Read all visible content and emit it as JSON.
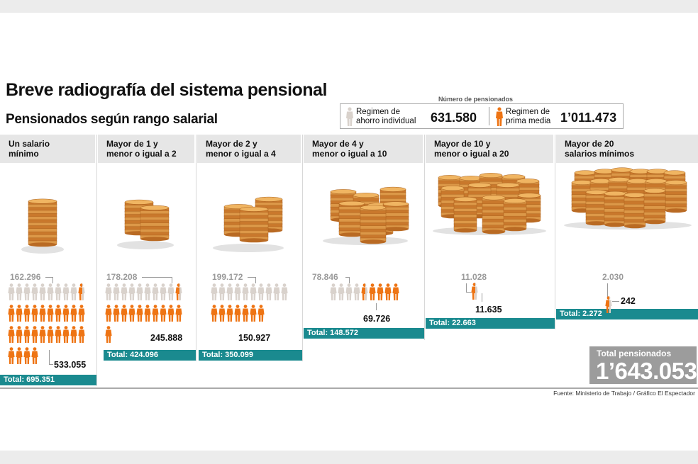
{
  "title": "Breve radiografía del sistema pensional",
  "subtitle": "Pensionados según rango salarial",
  "legend": {
    "title": "Número de pensionados",
    "ahorro": {
      "label_line1": "Regimen de",
      "label_line2": "ahorro individual",
      "value": "631.580",
      "color": "#d9d2cc"
    },
    "prima": {
      "label_line1": "Regimen de",
      "label_line2": "prima media",
      "value": "1’011.473",
      "color": "#ee7414"
    }
  },
  "grand_total": {
    "label": "Total pensionados",
    "value": "1’643.053"
  },
  "source": "Fuente: Ministerio de Trabajo / Gráfico El Espectador",
  "colors": {
    "ahorro": "#d9d2cc",
    "prima": "#ee7414",
    "total_bar": "#1a8a8f",
    "coin": "#d88f3c"
  },
  "chart_data": {
    "type": "pictogram",
    "categories": [
      "Un salario mínimo",
      "Mayor de 1 y menor o igual a 2",
      "Mayor de 2 y menor o igual a 4",
      "Mayor de 4 y menor o igual a 10",
      "Mayor de 10 y menor o igual a 20",
      "Mayor de 20 salarios mínimos"
    ],
    "series": [
      {
        "name": "Regimen de ahorro individual",
        "values": [
          162296,
          178208,
          199172,
          78846,
          11028,
          2030
        ]
      },
      {
        "name": "Regimen de prima media",
        "values": [
          533055,
          245888,
          150927,
          69726,
          11635,
          242
        ]
      }
    ],
    "totals": [
      695351,
      424096,
      350099,
      148572,
      22663,
      2272
    ]
  },
  "columns": [
    {
      "head1": "Un salario",
      "head2": "mínimo",
      "ahorro": "162.296",
      "prima": "533.055",
      "total": "Total: 695.351"
    },
    {
      "head1": "Mayor de 1 y",
      "head2": "menor o igual a 2",
      "ahorro": "178.208",
      "prima": "245.888",
      "total": "Total: 424.096"
    },
    {
      "head1": "Mayor de 2 y",
      "head2": "menor o igual a 4",
      "ahorro": "199.172",
      "prima": "150.927",
      "total": "Total: 350.099"
    },
    {
      "head1": "Mayor de 4 y",
      "head2": "menor o igual a 10",
      "ahorro": "78.846",
      "prima": "69.726",
      "total": "Total: 148.572"
    },
    {
      "head1": "Mayor de 10 y",
      "head2": "menor o igual a 20",
      "ahorro": "11.028",
      "prima": "11.635",
      "total": "Total: 22.663"
    },
    {
      "head1": "Mayor de 20",
      "head2": "salarios mínimos",
      "ahorro": "2.030",
      "prima": "242",
      "total": "Total: 2.272"
    }
  ]
}
